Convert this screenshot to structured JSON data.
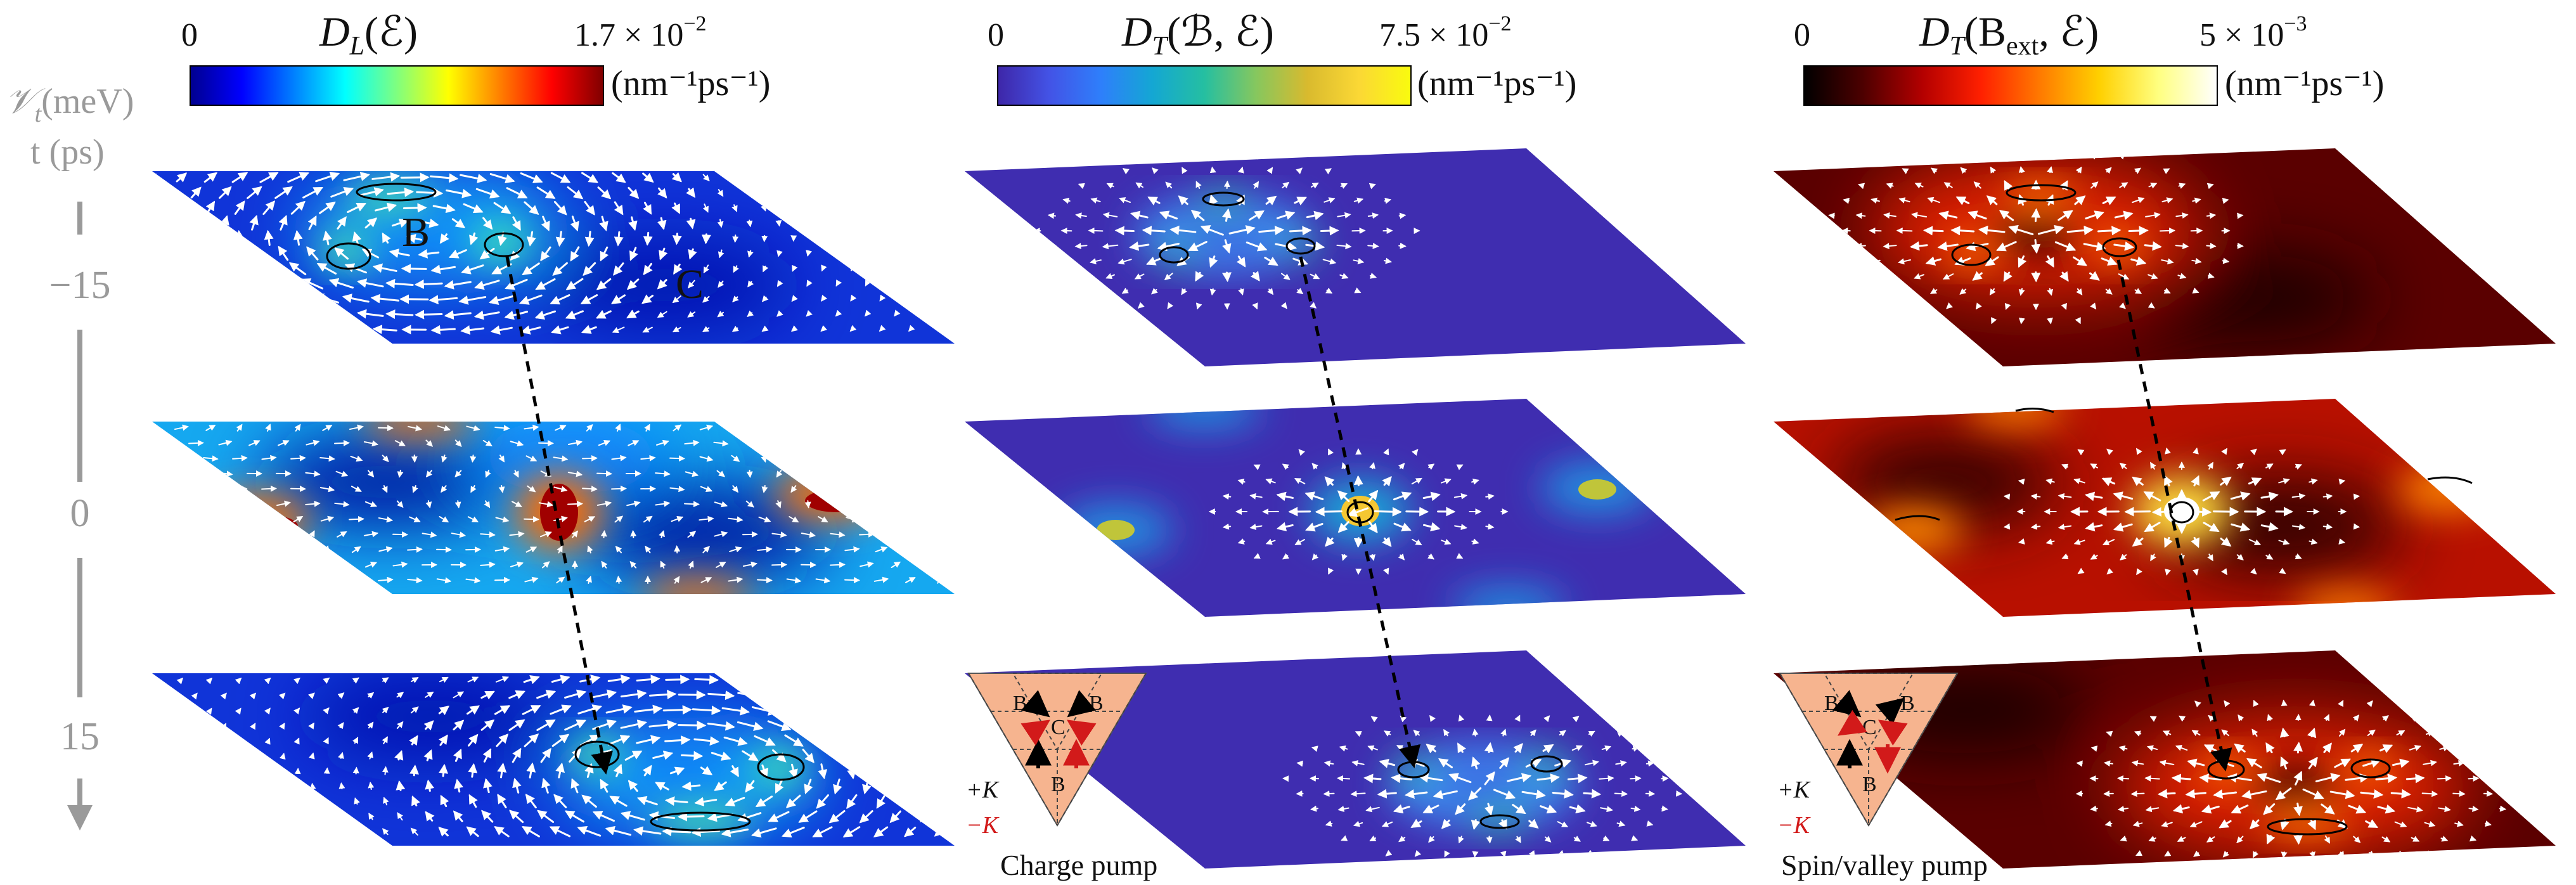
{
  "colors": {
    "arrow": "#ffffff",
    "trajectory": "#000000",
    "axis_gray": "#9a9a9a",
    "pump_triangle_fill": "#f6b48f",
    "plus_k_arrow": "#000000",
    "minus_k_arrow": "#d21a1a"
  },
  "left_axis": {
    "label_v": "𝒱",
    "label_v_sub": "t",
    "label_v_unit": "(meV)",
    "label_t": "t (ps)",
    "ticks": [
      "−15",
      "0",
      "15"
    ]
  },
  "panels": [
    {
      "id": "DL",
      "title_main": "D",
      "title_sub": "L",
      "title_args": "(ℰ)",
      "cbar_min": "0",
      "cbar_max": "1.7 × 10",
      "cbar_exp": "−2",
      "units": "(nm⁻¹ps⁻¹)",
      "colormap": "jet",
      "colormap_stops": [
        "#00008f",
        "#0000ff",
        "#007fff",
        "#00ffff",
        "#7fff7f",
        "#ffff00",
        "#ff7f00",
        "#ff0000",
        "#7f0000"
      ],
      "labels": [
        "B",
        "C"
      ],
      "pump_caption": ""
    },
    {
      "id": "DT_B",
      "title_main": "D",
      "title_sub": "T",
      "title_args": "(ℬ, ℰ)",
      "cbar_min": "0",
      "cbar_max": "7.5 × 10",
      "cbar_exp": "−2",
      "units": "(nm⁻¹ps⁻¹)",
      "colormap": "parula",
      "colormap_stops": [
        "#3e26a8",
        "#4353e6",
        "#2e7ffb",
        "#14a7d3",
        "#25bfa1",
        "#86c75e",
        "#d9ba2e",
        "#fbd835",
        "#f9fb0e"
      ],
      "labels": [],
      "pump_caption": "Charge pump"
    },
    {
      "id": "DT_Bext",
      "title_main": "D",
      "title_sub": "T",
      "title_args": "(B",
      "title_args_sub": "ext",
      "title_args_end": ", ℰ)",
      "cbar_min": "0",
      "cbar_max": "5 × 10",
      "cbar_exp": "−3",
      "units": "(nm⁻¹ps⁻¹)",
      "colormap": "hot",
      "colormap_stops": [
        "#000000",
        "#4d0000",
        "#b30000",
        "#ff2000",
        "#ff7a00",
        "#ffd000",
        "#ffff80",
        "#ffffff"
      ],
      "labels": [],
      "pump_caption": "Spin/valley pump"
    }
  ],
  "pump_inset": {
    "node_labels": [
      "B",
      "C",
      "B",
      "B"
    ],
    "legend_plus": "+K",
    "legend_minus": "−K"
  }
}
